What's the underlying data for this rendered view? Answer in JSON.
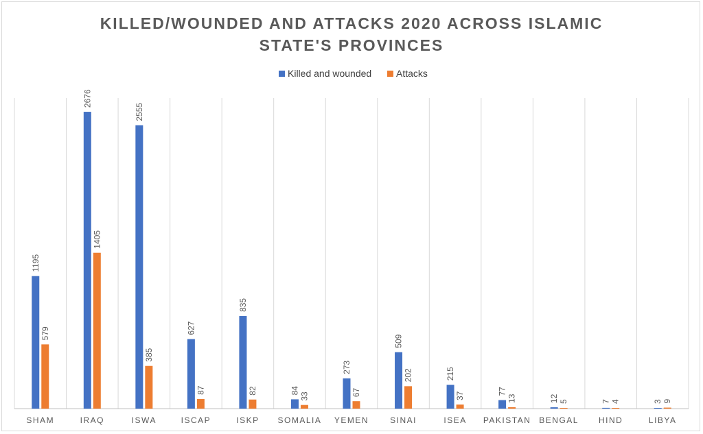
{
  "chart_data": {
    "type": "bar",
    "title_lines": [
      "KILLED/WOUNDED AND ATTACKS 2020 ACROSS ISLAMIC",
      "STATE'S PROVINCES"
    ],
    "categories": [
      "SHAM",
      "IRAQ",
      "ISWA",
      "ISCAP",
      "ISKP",
      "SOMALIA",
      "YEMEN",
      "SINAI",
      "ISEA",
      "PAKISTAN",
      "BENGAL",
      "HIND",
      "LIBYA"
    ],
    "series": [
      {
        "name": "Killed and wounded",
        "color": "#4472C4",
        "values": [
          1195,
          2676,
          2555,
          627,
          835,
          84,
          273,
          509,
          215,
          77,
          12,
          7,
          3
        ]
      },
      {
        "name": "Attacks",
        "color": "#ED7D31",
        "values": [
          579,
          1405,
          385,
          87,
          82,
          33,
          67,
          202,
          37,
          13,
          5,
          4,
          9
        ]
      }
    ],
    "xlabel": "",
    "ylabel": "",
    "ylim": [
      0,
      2800
    ],
    "legend_position": "top-center",
    "vertical_gridlines": true,
    "data_labels": true,
    "data_label_rotation": "vertical"
  }
}
